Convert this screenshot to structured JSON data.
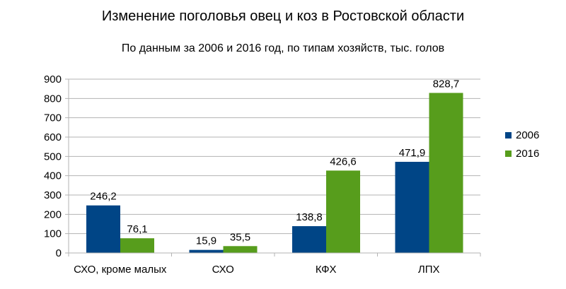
{
  "chart_data": {
    "type": "bar",
    "title": "Изменение поголовья овец и коз в Ростовской области",
    "subtitle": "По данным за 2006 и 2016 год, по типам хозяйств, тыс. голов",
    "categories": [
      "СХО, кроме малых",
      "СХО",
      "КФХ",
      "ЛПХ"
    ],
    "series": [
      {
        "name": "2006",
        "color": "#004586",
        "values": [
          246.2,
          15.9,
          138.8,
          471.9
        ],
        "labels": [
          "246,2",
          "15,9",
          "138,8",
          "471,9"
        ]
      },
      {
        "name": "2016",
        "color": "#579d1c",
        "values": [
          76.1,
          35.5,
          426.6,
          828.7
        ],
        "labels": [
          "76,1",
          "35,5",
          "426,6",
          "828,7"
        ]
      }
    ],
    "ylim": [
      0,
      900
    ],
    "yticks": [
      0,
      100,
      200,
      300,
      400,
      500,
      600,
      700,
      800,
      900
    ],
    "grid": true,
    "legend": "right",
    "xlabel": "",
    "ylabel": ""
  }
}
